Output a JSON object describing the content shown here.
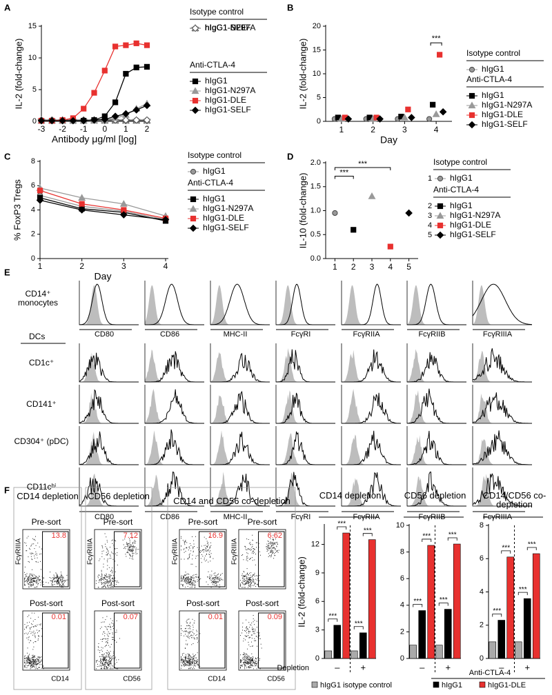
{
  "panel_labels": [
    "A",
    "B",
    "C",
    "D",
    "E",
    "F"
  ],
  "chart_data": [
    {
      "type": "line",
      "x_label": "Antibody μg/ml [log]",
      "y_label": "IL-2 (fold-change)",
      "x": [
        -3,
        -2.5,
        -2,
        -1.5,
        -1,
        -0.5,
        0,
        0.5,
        1,
        1.5,
        2
      ],
      "xlim": [
        -3,
        2
      ],
      "xticks": [
        -3,
        -2,
        -1,
        0,
        1,
        2
      ],
      "ylim": [
        0,
        15
      ],
      "yticks": [
        0,
        5,
        10,
        15
      ],
      "series_groups": [
        {
          "name": "Isotype control",
          "series": [
            {
              "name": "hIgG1",
              "color": "#999999",
              "marker": "circle",
              "values": [
                0.2,
                0.2,
                0.2,
                0.2,
                0.2,
                0.2,
                0.2,
                0.2,
                0.2,
                0.2,
                0.2
              ]
            },
            {
              "name": "hIgG1-N297A",
              "color": "#555555",
              "marker": "triangle",
              "open": true,
              "values": [
                0.1,
                0.1,
                0.1,
                0.1,
                0.1,
                0.1,
                0.1,
                0.1,
                0.1,
                0.1,
                0.1
              ]
            },
            {
              "name": "hIgG1-DLE",
              "color": "#888888",
              "marker": "star",
              "values": [
                0.15,
                0.15,
                0.15,
                0.15,
                0.15,
                0.15,
                0.15,
                0.15,
                0.15,
                0.15,
                0.15
              ]
            },
            {
              "name": "hIgG1-SELF",
              "color": "#555555",
              "marker": "diamond",
              "open": true,
              "values": [
                0.2,
                0.2,
                0.2,
                0.2,
                0.2,
                0.2,
                0.2,
                0.2,
                0.2,
                0.2,
                0.2
              ]
            }
          ]
        },
        {
          "name": "Anti-CTLA-4",
          "series": [
            {
              "name": "hIgG1",
              "color": "#000000",
              "marker": "square",
              "values": [
                0.1,
                0.1,
                0.1,
                0.1,
                0.1,
                0.2,
                0.8,
                3,
                7.5,
                8.5,
                8.6
              ]
            },
            {
              "name": "hIgG1-N297A",
              "color": "#999999",
              "marker": "triangle",
              "values": [
                0.1,
                0.1,
                0.1,
                0.1,
                0.1,
                0.1,
                0.2,
                0.5,
                1,
                2,
                2.8
              ]
            },
            {
              "name": "hIgG1-DLE",
              "color": "#e8312f",
              "marker": "square",
              "values": [
                0.1,
                0.1,
                0.2,
                0.5,
                2,
                4.5,
                8,
                11.8,
                12,
                12.3,
                12
              ]
            },
            {
              "name": "hIgG1-SELF",
              "color": "#000000",
              "marker": "diamond",
              "values": [
                0.1,
                0.1,
                0.1,
                0.1,
                0.1,
                0.2,
                0.3,
                0.8,
                1.2,
                1.8,
                2.5
              ]
            }
          ]
        }
      ]
    },
    {
      "type": "dot",
      "x_label": "Day",
      "y_label": "IL-2 (fold-change)",
      "categories": [
        "1",
        "2",
        "3",
        "4"
      ],
      "ylim": [
        0,
        20
      ],
      "yticks": [
        0,
        5,
        10,
        15,
        20
      ],
      "annotations": [
        "***"
      ],
      "series_groups": [
        {
          "name": "Isotype control",
          "series": [
            {
              "name": "hIgG1",
              "color": "#999999",
              "marker": "circle",
              "values": [
                0.5,
                0.5,
                0.5,
                0.5
              ]
            }
          ]
        },
        {
          "name": "Anti-CTLA-4",
          "series": [
            {
              "name": "hIgG1",
              "color": "#000000",
              "marker": "square",
              "values": [
                0.8,
                0.8,
                1,
                3.5
              ]
            },
            {
              "name": "hIgG1-N297A",
              "color": "#999999",
              "marker": "triangle",
              "values": [
                0.5,
                0.5,
                0.8,
                1.5
              ]
            },
            {
              "name": "hIgG1-DLE",
              "color": "#e8312f",
              "marker": "square",
              "values": [
                0.8,
                0.8,
                2.5,
                14
              ]
            },
            {
              "name": "hIgG1-SELF",
              "color": "#000000",
              "marker": "diamond",
              "values": [
                0.5,
                0.5,
                0.8,
                2
              ]
            }
          ]
        }
      ]
    },
    {
      "type": "line",
      "x_label": "Day",
      "y_label": "% FoxP3 Tregs",
      "x": [
        1,
        2,
        3,
        4
      ],
      "xlim": [
        1,
        4
      ],
      "xticks": [
        1,
        2,
        3,
        4
      ],
      "ylim": [
        0,
        8
      ],
      "yticks": [
        0,
        2,
        4,
        6,
        8
      ],
      "series_groups": [
        {
          "name": "Isotype control",
          "series": [
            {
              "name": "hIgG1",
              "color": "#999999",
              "marker": "circle",
              "values": [
                5.2,
                4.3,
                3.9,
                3.2
              ]
            }
          ]
        },
        {
          "name": "Anti-CTLA-4",
          "series": [
            {
              "name": "hIgG1",
              "color": "#000000",
              "marker": "square",
              "values": [
                5,
                4.1,
                3.8,
                3.1
              ]
            },
            {
              "name": "hIgG1-N297A",
              "color": "#999999",
              "marker": "triangle",
              "values": [
                5.8,
                5,
                4.5,
                3.5
              ]
            },
            {
              "name": "hIgG1-DLE",
              "color": "#e8312f",
              "marker": "square",
              "values": [
                5.6,
                4.5,
                4,
                3.3
              ]
            },
            {
              "name": "hIgG1-SELF",
              "color": "#000000",
              "marker": "diamond",
              "values": [
                4.8,
                4,
                3.6,
                3.2
              ]
            }
          ]
        }
      ]
    },
    {
      "type": "dot",
      "y_label": "IL-10 (fold-change)",
      "categories": [
        "1",
        "2",
        "3",
        "4",
        "5"
      ],
      "ylim": [
        0,
        2
      ],
      "yticks": [
        {
          "value": 0,
          "label": "0.0"
        },
        {
          "value": 0.5,
          "label": "0.5"
        },
        {
          "value": 1,
          "label": "1.0"
        },
        {
          "value": 1.5,
          "label": "1.5"
        },
        {
          "value": 2,
          "label": "2.0"
        }
      ],
      "annotations": [
        "***",
        "***"
      ],
      "series_groups": [
        {
          "name": "Isotype control",
          "series": [
            {
              "name": "hIgG1",
              "color": "#999999",
              "marker": "circle",
              "values": [
                0.95,
                null,
                null,
                null,
                null
              ]
            }
          ]
        },
        {
          "name": "Anti-CTLA-4",
          "series": [
            {
              "name": "hIgG1",
              "color": "#000000",
              "marker": "square",
              "values": [
                null,
                0.6,
                null,
                null,
                null
              ]
            },
            {
              "name": "hIgG1-N297A",
              "color": "#999999",
              "marker": "triangle",
              "values": [
                null,
                null,
                1.3,
                null,
                null
              ]
            },
            {
              "name": "hIgG1-DLE",
              "color": "#e8312f",
              "marker": "square",
              "values": [
                null,
                null,
                null,
                0.25,
                null
              ]
            },
            {
              "name": "hIgG1-SELF",
              "color": "#000000",
              "marker": "diamond",
              "values": [
                null,
                null,
                null,
                null,
                0.95
              ]
            }
          ]
        }
      ]
    },
    {
      "type": "bar",
      "title": "CD14 depletion",
      "y_label": "IL-2 (fold-change)",
      "x_label": "Depletion",
      "categories": [
        "–",
        "+"
      ],
      "ylim": [
        0,
        14
      ],
      "yticks": [
        0,
        3,
        6,
        9,
        12
      ],
      "annotations": [
        "***",
        "***",
        "***",
        "***"
      ],
      "series": [
        {
          "color": "#aaaaaa",
          "values": [
            0.8,
            0.8
          ]
        },
        {
          "color": "#000000",
          "values": [
            3.5,
            2.7
          ]
        },
        {
          "color": "#e8312f",
          "values": [
            13.2,
            12.5
          ]
        }
      ]
    },
    {
      "type": "bar",
      "title": "CD56 depletion",
      "categories": [
        "–",
        "+"
      ],
      "ylim": [
        0,
        10
      ],
      "yticks": [
        0,
        2,
        4,
        6,
        8,
        10
      ],
      "annotations": [
        "***",
        "***",
        "***",
        "***"
      ],
      "series": [
        {
          "color": "#aaaaaa",
          "values": [
            1,
            1
          ]
        },
        {
          "color": "#000000",
          "values": [
            3.6,
            3.7
          ]
        },
        {
          "color": "#e8312f",
          "values": [
            8.5,
            8.6
          ]
        }
      ]
    },
    {
      "type": "bar",
      "title": "CD14/CD56 co-depletion",
      "categories": [
        "–",
        "+"
      ],
      "ylim": [
        0,
        8
      ],
      "yticks": [
        0,
        2,
        4,
        6,
        8
      ],
      "annotations": [
        "***",
        "***",
        "***",
        "***"
      ],
      "series": [
        {
          "color": "#aaaaaa",
          "values": [
            1,
            1
          ]
        },
        {
          "color": "#000000",
          "values": [
            2.3,
            3.6
          ]
        },
        {
          "color": "#e8312f",
          "values": [
            6.1,
            6.3
          ]
        }
      ]
    }
  ],
  "panel_e": {
    "monocyte_row": "CD14⁺ monocytes",
    "dc_heading": "DCs",
    "dc_rows": [
      "CD1c⁺",
      "CD141⁺",
      "CD304⁺ (pDC)",
      "CD11cʰⁱ"
    ],
    "monocyte_markers": [
      "CD80",
      "CD86",
      "MHC-II",
      "FcγRI",
      "FcγRIIA",
      "FcγRIIB",
      "FcγRIIIA"
    ],
    "dc_markers": [
      "CD80",
      "CD86",
      "MHC-II",
      "FcγRI",
      "FcγRIIA",
      "FcγRIIB",
      "FcγRIIIA"
    ]
  },
  "panel_f_facs": {
    "titles": [
      "CD14 depletion",
      "CD56 depletion",
      "CD14 and CD56 co-depletion"
    ],
    "pre_label": "Pre-sort",
    "post_label": "Post-sort",
    "y_label": "FcγRIIIA",
    "plots": [
      {
        "x_label": "CD14",
        "pre_gate": 13.8,
        "post_gate": 0.01
      },
      {
        "x_label": "CD56",
        "pre_gate": 7.12,
        "post_gate": 0.07
      },
      {
        "x_label": "CD14",
        "pre_gate": 16.9,
        "post_gate": 0.01
      },
      {
        "x_label": "CD56",
        "pre_gate": 6.62,
        "post_gate": 0.09
      }
    ]
  },
  "panel_f_legend": {
    "group_label": "Anti-CTLA-4",
    "entries": [
      {
        "name": "hIgG1 isotype control",
        "color": "#aaaaaa"
      },
      {
        "name": "hIgG1",
        "color": "#000000"
      },
      {
        "name": "hIgG1-DLE",
        "color": "#e8312f"
      }
    ]
  }
}
